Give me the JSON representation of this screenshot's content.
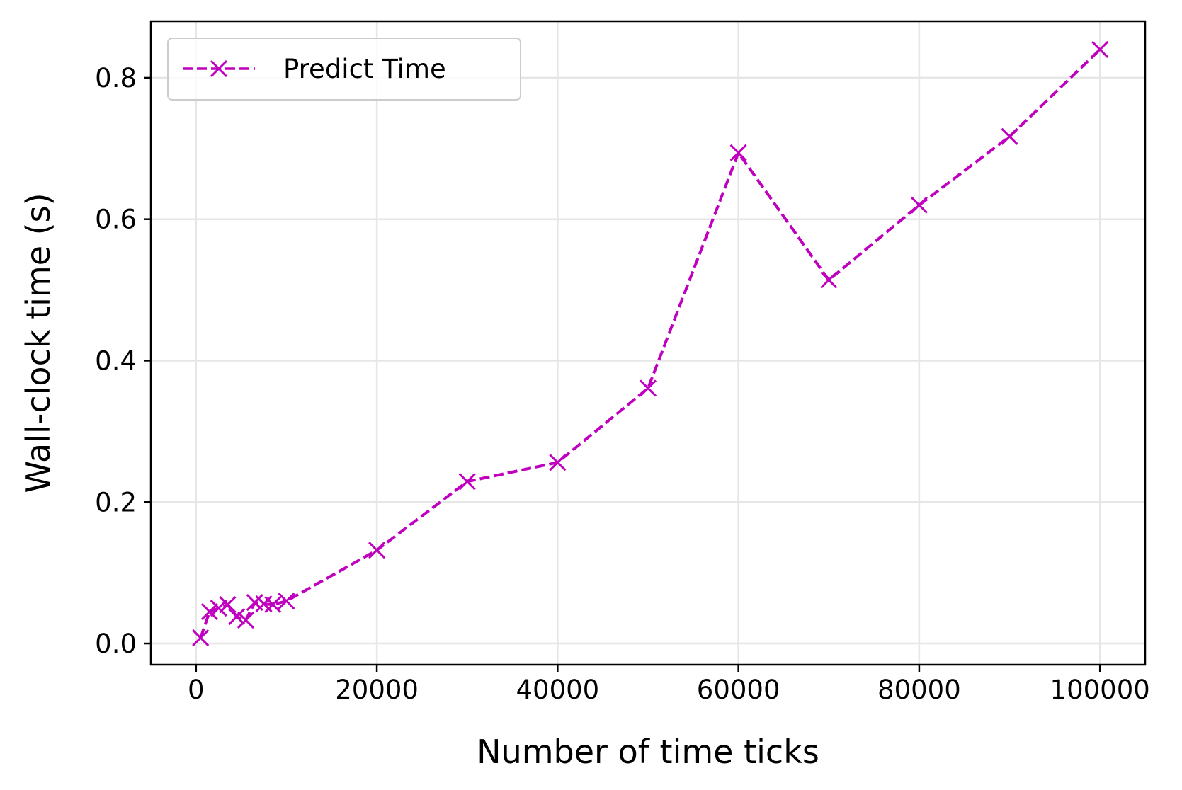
{
  "chart_data": {
    "type": "line",
    "title": "",
    "xlabel": "Number of time ticks",
    "ylabel": "Wall-clock time (s)",
    "xlim": [
      -5000,
      105000
    ],
    "ylim": [
      -0.03,
      0.88
    ],
    "xticks": [
      0,
      20000,
      40000,
      60000,
      80000,
      100000
    ],
    "xtick_labels": [
      "0",
      "20000",
      "40000",
      "60000",
      "80000",
      "100000"
    ],
    "yticks": [
      0.0,
      0.2,
      0.4,
      0.6,
      0.8
    ],
    "ytick_labels": [
      "0.0",
      "0.2",
      "0.4",
      "0.6",
      "0.8"
    ],
    "grid": true,
    "legend_position": "top-left",
    "series": [
      {
        "name": "Predict Time",
        "color": "#bf00bf",
        "linestyle": "dashed",
        "marker": "x",
        "x": [
          500,
          1500,
          2500,
          3500,
          4500,
          5500,
          6500,
          7500,
          8500,
          10000,
          20000,
          30000,
          40000,
          50000,
          60000,
          70000,
          80000,
          90000,
          100000
        ],
        "y": [
          0.008,
          0.045,
          0.05,
          0.055,
          0.038,
          0.033,
          0.058,
          0.056,
          0.055,
          0.06,
          0.132,
          0.229,
          0.256,
          0.361,
          0.694,
          0.514,
          0.62,
          0.717,
          0.84
        ]
      }
    ]
  }
}
